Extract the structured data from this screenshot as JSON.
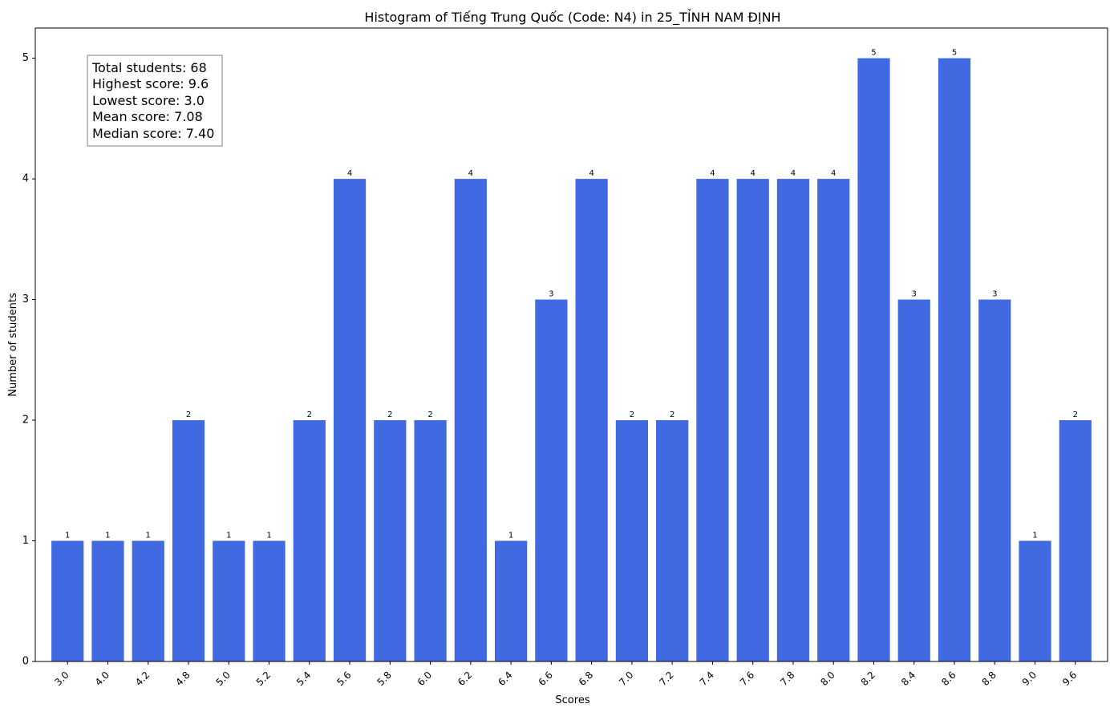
{
  "chart_data": {
    "type": "bar",
    "title": "Histogram of Tiếng Trung Quốc (Code: N4) in 25_TỈNH NAM ĐỊNH",
    "xlabel": "Scores",
    "ylabel": "Number of students",
    "categories": [
      "3.0",
      "4.0",
      "4.2",
      "4.8",
      "5.0",
      "5.2",
      "5.4",
      "5.6",
      "5.8",
      "6.0",
      "6.2",
      "6.4",
      "6.6",
      "6.8",
      "7.0",
      "7.2",
      "7.4",
      "7.6",
      "7.8",
      "8.0",
      "8.2",
      "8.4",
      "8.6",
      "8.8",
      "9.0",
      "9.6"
    ],
    "values": [
      1,
      1,
      1,
      2,
      1,
      1,
      2,
      4,
      2,
      2,
      4,
      1,
      3,
      4,
      2,
      2,
      4,
      4,
      4,
      4,
      5,
      3,
      5,
      3,
      1,
      2
    ],
    "ylim": [
      0,
      5.25
    ],
    "yticks": [
      0,
      1,
      2,
      3,
      4,
      5
    ],
    "bar_color": "#4169E1",
    "grid": false,
    "stats_box": {
      "lines": [
        "Total students: 68",
        "Highest score: 9.6",
        "Lowest score: 3.0",
        "Mean score: 7.08",
        "Median score: 7.40"
      ]
    }
  }
}
